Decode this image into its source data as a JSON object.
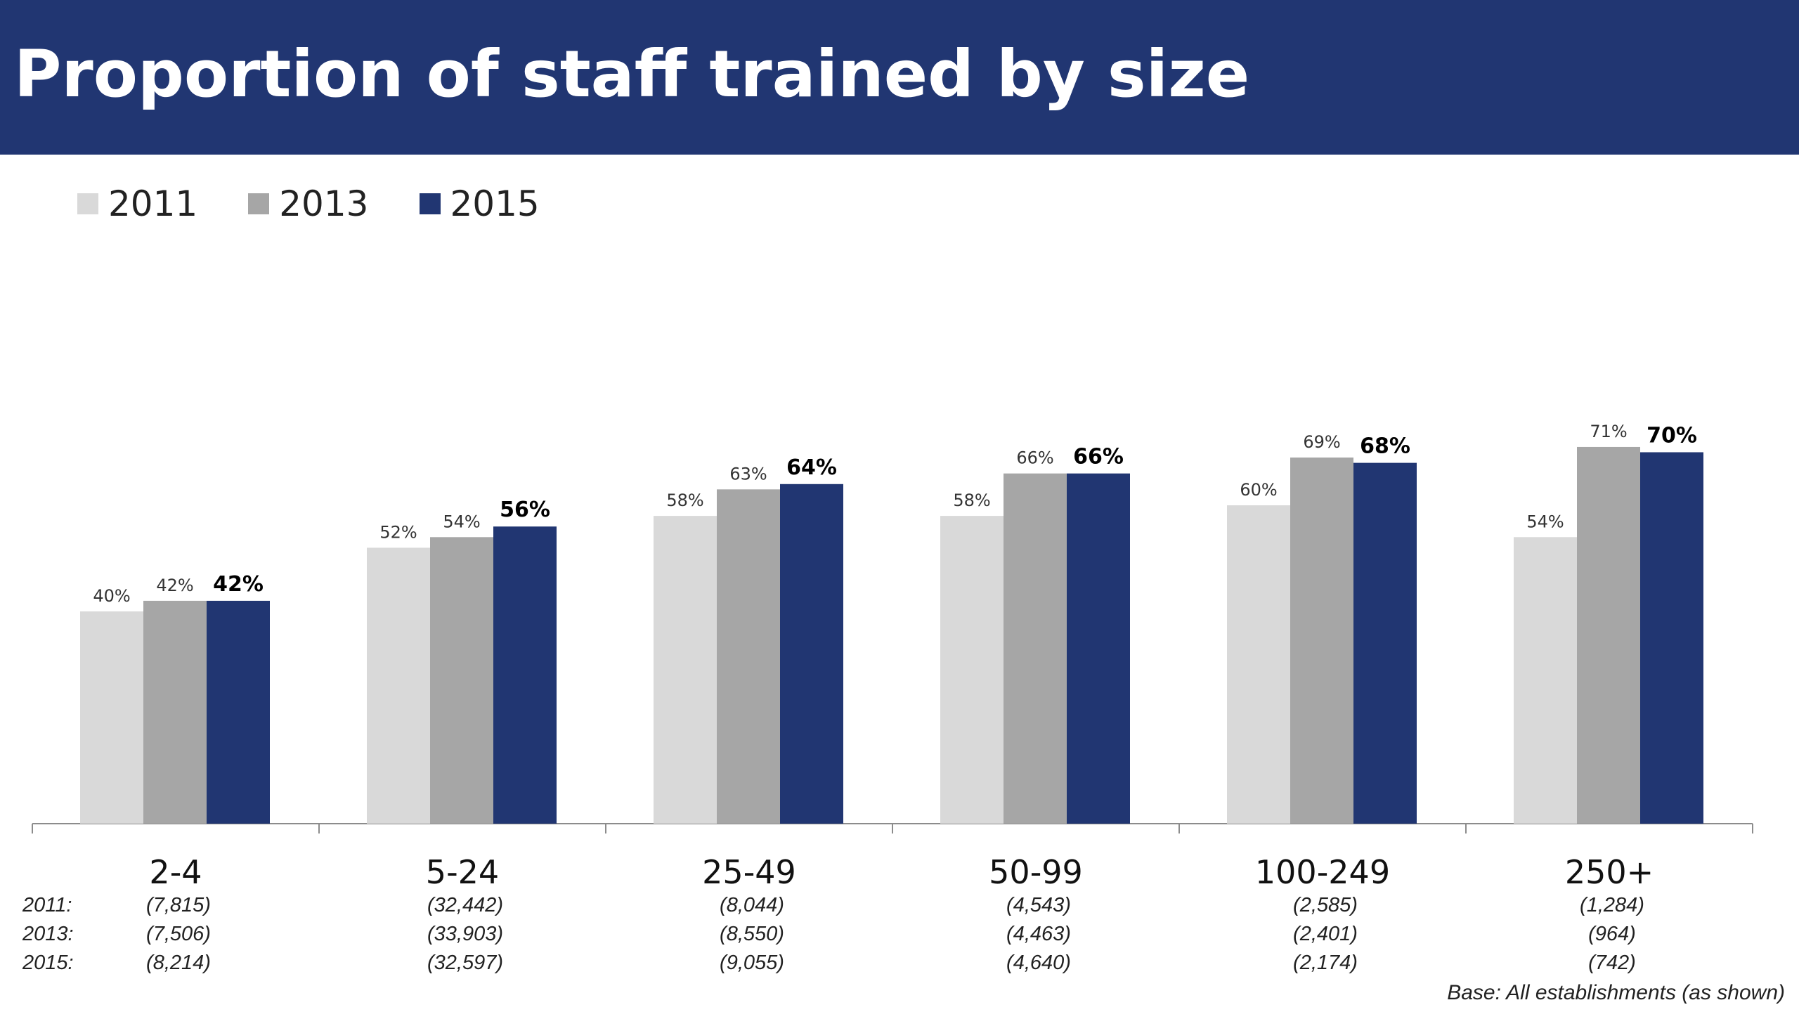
{
  "header": {
    "title": "Proportion of staff trained by size"
  },
  "legend": [
    {
      "label": "2011",
      "color": "#d9d9d9"
    },
    {
      "label": "2013",
      "color": "#a6a6a6"
    },
    {
      "label": "2015",
      "color": "#213672"
    }
  ],
  "base_rows": [
    "2011:",
    "2013:",
    "2015:"
  ],
  "footnote": "Base: All establishments  (as shown)",
  "chart_data": {
    "type": "bar",
    "title": "Proportion of staff trained by size",
    "categories": [
      "2-4",
      "5-24",
      "25-49",
      "50-99",
      "100-249",
      "250+"
    ],
    "series": [
      {
        "name": "2011",
        "color": "#d9d9d9",
        "values": [
          40,
          52,
          58,
          58,
          60,
          54
        ],
        "labels": [
          "40%",
          "52%",
          "58%",
          "58%",
          "60%",
          "54%"
        ]
      },
      {
        "name": "2013",
        "color": "#a6a6a6",
        "values": [
          42,
          54,
          63,
          66,
          69,
          71
        ],
        "labels": [
          "42%",
          "54%",
          "63%",
          "66%",
          "69%",
          "71%"
        ]
      },
      {
        "name": "2015",
        "color": "#213672",
        "values": [
          42,
          56,
          64,
          66,
          68,
          70
        ],
        "labels": [
          "42%",
          "56%",
          "64%",
          "66%",
          "68%",
          "70%"
        ]
      }
    ],
    "bases": [
      [
        "(7,815)",
        "(7,506)",
        "(8,214)"
      ],
      [
        "(32,442)",
        "(33,903)",
        "(32,597)"
      ],
      [
        "(8,044)",
        "(8,550)",
        "(9,055)"
      ],
      [
        "(4,543)",
        "(4,463)",
        "(4,640)"
      ],
      [
        "(2,585)",
        "(2,401)",
        "(2,174)"
      ],
      [
        "(1,284)",
        "(964)",
        "(742)"
      ]
    ],
    "ylim": [
      0,
      100
    ],
    "grid": false,
    "legend_position": "top-left"
  }
}
